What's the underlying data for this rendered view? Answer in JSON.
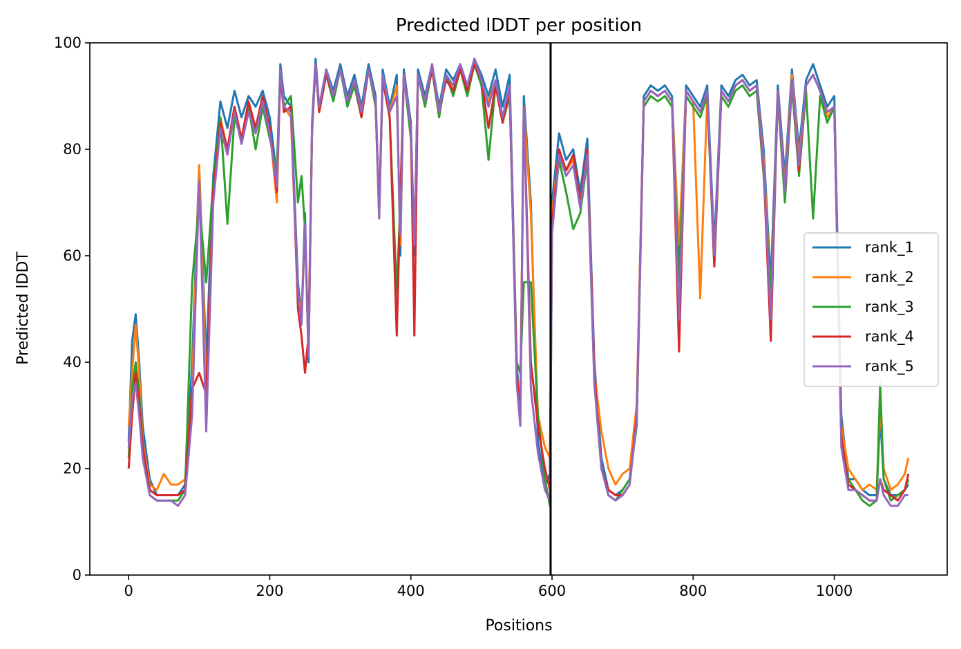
{
  "chart_data": {
    "type": "line",
    "title": "Predicted lDDT per position",
    "xlabel": "Positions",
    "ylabel": "Predicted lDDT",
    "xlim": [
      -55,
      1160
    ],
    "ylim": [
      0,
      100
    ],
    "xticks": [
      0,
      200,
      400,
      600,
      800,
      1000
    ],
    "yticks": [
      0,
      20,
      40,
      60,
      80,
      100
    ],
    "grid": false,
    "legend_position": "center-right",
    "divider_x": 598,
    "divider_color": "#000000",
    "x": [
      0,
      5,
      10,
      15,
      20,
      30,
      40,
      50,
      60,
      70,
      80,
      90,
      100,
      110,
      120,
      130,
      140,
      150,
      160,
      170,
      180,
      190,
      200,
      210,
      215,
      220,
      230,
      240,
      245,
      250,
      255,
      260,
      265,
      270,
      280,
      290,
      300,
      310,
      320,
      330,
      340,
      350,
      355,
      360,
      370,
      380,
      385,
      390,
      400,
      405,
      410,
      420,
      430,
      440,
      450,
      460,
      470,
      480,
      490,
      500,
      510,
      520,
      530,
      540,
      550,
      555,
      560,
      570,
      580,
      590,
      597,
      600,
      610,
      620,
      630,
      640,
      650,
      660,
      670,
      680,
      690,
      700,
      710,
      720,
      730,
      740,
      750,
      760,
      770,
      780,
      790,
      800,
      810,
      820,
      830,
      840,
      850,
      860,
      870,
      880,
      890,
      900,
      910,
      920,
      930,
      940,
      950,
      960,
      970,
      980,
      990,
      1000,
      1010,
      1020,
      1030,
      1040,
      1050,
      1060,
      1065,
      1070,
      1080,
      1090,
      1100,
      1105
    ],
    "series": [
      {
        "name": "rank_1",
        "color": "#1f77b4",
        "values": [
          25,
          44,
          49,
          40,
          28,
          18,
          15,
          15,
          15,
          15,
          17,
          40,
          77,
          40,
          75,
          89,
          84,
          91,
          86,
          90,
          88,
          91,
          86,
          75,
          96,
          90,
          88,
          55,
          48,
          68,
          40,
          85,
          97,
          88,
          95,
          91,
          96,
          90,
          94,
          88,
          96,
          90,
          68,
          95,
          88,
          94,
          60,
          95,
          85,
          60,
          95,
          90,
          96,
          88,
          95,
          93,
          96,
          92,
          97,
          94,
          90,
          95,
          88,
          94,
          40,
          30,
          90,
          70,
          25,
          17,
          19,
          70,
          83,
          78,
          80,
          72,
          82,
          40,
          22,
          16,
          15,
          16,
          18,
          30,
          90,
          92,
          91,
          92,
          90,
          60,
          92,
          90,
          88,
          92,
          62,
          92,
          90,
          93,
          94,
          92,
          93,
          80,
          55,
          92,
          75,
          95,
          80,
          93,
          96,
          92,
          88,
          90,
          30,
          18,
          18,
          16,
          15,
          15,
          30,
          18,
          15,
          15,
          16,
          17
        ]
      },
      {
        "name": "rank_2",
        "color": "#ff7f0e",
        "values": [
          28,
          38,
          47,
          38,
          25,
          17,
          16,
          19,
          17,
          17,
          18,
          35,
          77,
          35,
          72,
          86,
          80,
          88,
          82,
          88,
          84,
          90,
          84,
          70,
          95,
          88,
          86,
          52,
          50,
          65,
          42,
          83,
          96,
          87,
          94,
          90,
          95,
          89,
          93,
          87,
          95,
          89,
          67,
          94,
          87,
          92,
          62,
          94,
          83,
          62,
          94,
          89,
          95,
          87,
          94,
          91,
          95,
          91,
          96,
          92,
          89,
          93,
          86,
          92,
          38,
          32,
          88,
          68,
          30,
          24,
          22,
          68,
          80,
          76,
          78,
          70,
          80,
          38,
          27,
          20,
          17,
          19,
          20,
          32,
          89,
          91,
          90,
          91,
          89,
          62,
          91,
          89,
          52,
          90,
          60,
          91,
          89,
          92,
          93,
          91,
          92,
          78,
          52,
          91,
          73,
          94,
          78,
          92,
          94,
          91,
          86,
          88,
          28,
          20,
          18,
          16,
          17,
          16,
          32,
          20,
          16,
          17,
          19,
          22
        ]
      },
      {
        "name": "rank_3",
        "color": "#2ca02c",
        "values": [
          22,
          35,
          40,
          34,
          24,
          15,
          14,
          14,
          14,
          14,
          16,
          55,
          70,
          55,
          74,
          86,
          66,
          86,
          82,
          88,
          80,
          88,
          82,
          76,
          95,
          88,
          90,
          70,
          75,
          65,
          42,
          84,
          96,
          87,
          94,
          89,
          95,
          88,
          92,
          86,
          95,
          88,
          68,
          94,
          86,
          53,
          70,
          94,
          82,
          62,
          94,
          88,
          95,
          86,
          94,
          90,
          95,
          90,
          96,
          92,
          78,
          92,
          85,
          90,
          40,
          38,
          55,
          55,
          30,
          18,
          13,
          65,
          78,
          72,
          65,
          68,
          78,
          36,
          20,
          15,
          14,
          16,
          18,
          28,
          88,
          90,
          89,
          90,
          88,
          55,
          90,
          88,
          86,
          90,
          58,
          90,
          88,
          91,
          92,
          90,
          91,
          75,
          52,
          90,
          70,
          92,
          75,
          91,
          67,
          90,
          85,
          88,
          25,
          18,
          16,
          14,
          13,
          14,
          36,
          18,
          14,
          15,
          16,
          18
        ]
      },
      {
        "name": "rank_4",
        "color": "#d62728",
        "values": [
          20,
          30,
          38,
          32,
          24,
          16,
          15,
          15,
          15,
          15,
          16,
          35,
          38,
          34,
          72,
          85,
          80,
          88,
          82,
          89,
          84,
          90,
          84,
          72,
          94,
          87,
          88,
          50,
          45,
          38,
          45,
          84,
          96,
          87,
          94,
          90,
          95,
          89,
          93,
          86,
          95,
          89,
          68,
          93,
          86,
          45,
          70,
          94,
          84,
          45,
          94,
          89,
          95,
          87,
          93,
          91,
          95,
          91,
          96,
          93,
          84,
          92,
          85,
          91,
          38,
          30,
          88,
          40,
          28,
          20,
          16,
          66,
          80,
          76,
          79,
          70,
          80,
          38,
          20,
          16,
          15,
          15,
          17,
          30,
          89,
          91,
          90,
          91,
          89,
          42,
          91,
          89,
          87,
          91,
          58,
          91,
          89,
          92,
          93,
          91,
          92,
          76,
          44,
          91,
          72,
          93,
          76,
          92,
          94,
          91,
          87,
          88,
          26,
          17,
          16,
          15,
          14,
          14,
          18,
          16,
          15,
          14,
          16,
          19
        ]
      },
      {
        "name": "rank_5",
        "color": "#9467bd",
        "values": [
          24,
          33,
          36,
          30,
          22,
          15,
          14,
          14,
          14,
          13,
          15,
          30,
          74,
          27,
          70,
          84,
          79,
          87,
          81,
          87,
          83,
          89,
          83,
          73,
          95,
          88,
          87,
          53,
          47,
          66,
          41,
          84,
          96,
          88,
          95,
          90,
          95,
          89,
          93,
          87,
          95,
          89,
          67,
          94,
          87,
          90,
          64,
          94,
          84,
          62,
          94,
          89,
          96,
          87,
          94,
          92,
          96,
          92,
          97,
          93,
          88,
          93,
          86,
          92,
          36,
          28,
          88,
          35,
          23,
          16,
          14,
          64,
          79,
          75,
          77,
          69,
          79,
          36,
          20,
          15,
          14,
          15,
          17,
          29,
          89,
          91,
          90,
          91,
          89,
          48,
          91,
          89,
          87,
          91,
          60,
          91,
          89,
          92,
          93,
          91,
          92,
          77,
          48,
          91,
          72,
          93,
          77,
          92,
          94,
          91,
          87,
          88,
          24,
          16,
          16,
          15,
          14,
          14,
          18,
          15,
          13,
          13,
          15,
          15
        ]
      }
    ]
  }
}
